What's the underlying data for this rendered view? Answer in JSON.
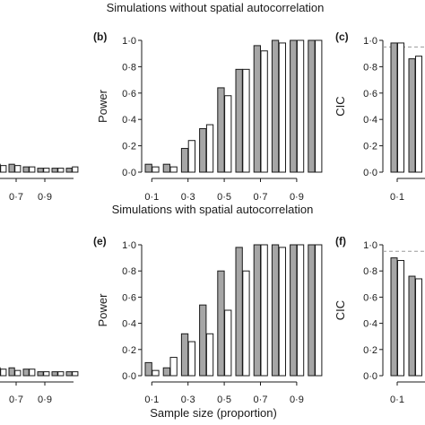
{
  "titles": {
    "top": "Simulations without spatial autocorrelation",
    "bottom": "Simulations with spatial autocorrelation"
  },
  "xlabel": "Sample size (proportion)",
  "colors": {
    "grey_bar": "#a6a6a6",
    "white_bar": "#ffffff",
    "stroke": "#1a1a1a",
    "ref_line": "#9a9a9a"
  },
  "chart_data": [
    {
      "id": "a-partial",
      "type": "bar",
      "tick_labels": [
        "0·7",
        "0·9"
      ],
      "categories": [
        0.5,
        0.6,
        0.7,
        0.8,
        0.9,
        1.0
      ],
      "series": [
        {
          "values": [
            0.06,
            0.06,
            0.04,
            0.03,
            0.03,
            0.03
          ]
        },
        {
          "values": [
            0.05,
            0.05,
            0.04,
            0.03,
            0.03,
            0.04
          ]
        }
      ]
    },
    {
      "id": "b",
      "panel_label": "(b)",
      "type": "bar",
      "ylabel": "Power",
      "ylim": [
        0,
        1
      ],
      "yticks": [
        "0·0",
        "0·2",
        "0·4",
        "0·6",
        "0·8",
        "1·0"
      ],
      "xticks": [
        "0·1",
        "0·3",
        "0·5",
        "0·7",
        "0·9"
      ],
      "categories": [
        0.1,
        0.2,
        0.3,
        0.4,
        0.5,
        0.6,
        0.7,
        0.8,
        0.9,
        1.0
      ],
      "series": [
        {
          "values": [
            0.06,
            0.06,
            0.18,
            0.33,
            0.64,
            0.78,
            0.96,
            1.0,
            1.0,
            1.0
          ]
        },
        {
          "values": [
            0.04,
            0.04,
            0.24,
            0.36,
            0.58,
            0.78,
            0.92,
            0.98,
            1.0,
            1.0
          ]
        }
      ]
    },
    {
      "id": "c-partial",
      "panel_label": "(c)",
      "type": "bar",
      "ylabel": "CIC",
      "yticks": [
        "0·0",
        "0·2",
        "0·4",
        "0·6",
        "0·8",
        "1·0"
      ],
      "xticks": [
        "0·1"
      ],
      "reference_line": 0.95,
      "series": [
        {
          "values": [
            0.98,
            0.86
          ]
        },
        {
          "values": [
            0.98,
            0.88
          ]
        }
      ]
    },
    {
      "id": "d-partial",
      "type": "bar",
      "tick_labels": [
        "0·7",
        "0·9"
      ],
      "categories": [
        0.5,
        0.6,
        0.7,
        0.8,
        0.9,
        1.0
      ],
      "series": [
        {
          "values": [
            0.06,
            0.06,
            0.05,
            0.03,
            0.03,
            0.03
          ]
        },
        {
          "values": [
            0.05,
            0.04,
            0.05,
            0.03,
            0.03,
            0.03
          ]
        }
      ]
    },
    {
      "id": "e",
      "panel_label": "(e)",
      "type": "bar",
      "ylabel": "Power",
      "ylim": [
        0,
        1
      ],
      "yticks": [
        "0·0",
        "0·2",
        "0·4",
        "0·6",
        "0·8",
        "1·0"
      ],
      "xticks": [
        "0·1",
        "0·3",
        "0·5",
        "0·7",
        "0·9"
      ],
      "categories": [
        0.1,
        0.2,
        0.3,
        0.4,
        0.5,
        0.6,
        0.7,
        0.8,
        0.9,
        1.0
      ],
      "series": [
        {
          "values": [
            0.1,
            0.06,
            0.32,
            0.54,
            0.8,
            0.98,
            1.0,
            1.0,
            1.0,
            1.0
          ]
        },
        {
          "values": [
            0.04,
            0.14,
            0.26,
            0.32,
            0.5,
            0.8,
            1.0,
            0.98,
            1.0,
            1.0
          ]
        }
      ]
    },
    {
      "id": "f-partial",
      "panel_label": "(f)",
      "type": "bar",
      "ylabel": "CIC",
      "yticks": [
        "0·0",
        "0·2",
        "0·4",
        "0·6",
        "0·8",
        "1·0"
      ],
      "xticks": [
        "0·1"
      ],
      "reference_line": 0.95,
      "series": [
        {
          "values": [
            0.9,
            0.76
          ]
        },
        {
          "values": [
            0.88,
            0.74
          ]
        }
      ]
    }
  ]
}
